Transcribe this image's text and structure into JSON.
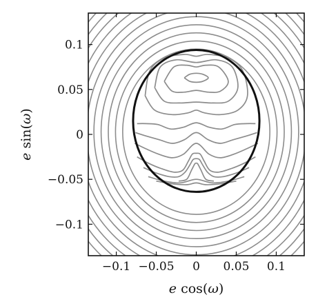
{
  "chart_data": {
    "type": "line",
    "title": "",
    "xlabel": {
      "var": "e",
      "fn": "cos(",
      "sym": "ω",
      "close": ")"
    },
    "ylabel": {
      "var": "e",
      "fn": "sin(",
      "sym": "ω",
      "close": ")"
    },
    "xlim": [
      -0.135,
      0.135
    ],
    "ylim": [
      -0.135,
      0.135
    ],
    "x_ticks": [
      {
        "value": -0.1,
        "label": "−0.1"
      },
      {
        "value": -0.05,
        "label": "−0.05"
      },
      {
        "value": 0,
        "label": "0"
      },
      {
        "value": 0.05,
        "label": "0.05"
      },
      {
        "value": 0.1,
        "label": "0.1"
      }
    ],
    "y_ticks": [
      {
        "value": 0.1,
        "label": "0.1"
      },
      {
        "value": 0.05,
        "label": "0.05"
      },
      {
        "value": 0,
        "label": "0"
      },
      {
        "value": -0.05,
        "label": "−0.05"
      },
      {
        "value": -0.1,
        "label": "−0.1"
      }
    ],
    "grid": false,
    "legend": "none",
    "colors": {
      "contour": "#8c8c8c",
      "separatrix": "#111111",
      "frame": "#111111"
    },
    "separatrix": {
      "center": [
        0,
        0.015
      ],
      "radius": 0.079
    },
    "outer_circles": {
      "center": [
        0,
        0.003
      ],
      "radii": [
        0.092,
        0.101,
        0.11,
        0.119,
        0.128,
        0.137,
        0.146,
        0.155,
        0.164,
        0.173,
        0.182
      ]
    },
    "inner_contours": [
      {
        "name": "island-top-1",
        "points": [
          [
            -0.015,
            0.063
          ],
          [
            -0.008,
            0.067
          ],
          [
            0,
            0.068
          ],
          [
            0.008,
            0.067
          ],
          [
            0.015,
            0.063
          ],
          [
            0.008,
            0.059
          ],
          [
            0,
            0.058
          ],
          [
            -0.008,
            0.059
          ],
          [
            -0.015,
            0.063
          ]
        ]
      },
      {
        "name": "island-top-2",
        "points": [
          [
            -0.04,
            0.059
          ],
          [
            -0.028,
            0.075
          ],
          [
            -0.012,
            0.077
          ],
          [
            0,
            0.075
          ],
          [
            0.012,
            0.077
          ],
          [
            0.028,
            0.075
          ],
          [
            0.04,
            0.059
          ],
          [
            0.03,
            0.048
          ],
          [
            0.015,
            0.047
          ],
          [
            0,
            0.049
          ],
          [
            -0.015,
            0.047
          ],
          [
            -0.03,
            0.048
          ],
          [
            -0.04,
            0.059
          ]
        ]
      },
      {
        "name": "island-top-3",
        "points": [
          [
            -0.052,
            0.052
          ],
          [
            -0.045,
            0.075
          ],
          [
            -0.025,
            0.083
          ],
          [
            0,
            0.08
          ],
          [
            0.025,
            0.083
          ],
          [
            0.045,
            0.075
          ],
          [
            0.052,
            0.052
          ],
          [
            0.04,
            0.037
          ],
          [
            0.02,
            0.035
          ],
          [
            0,
            0.036
          ],
          [
            -0.02,
            0.035
          ],
          [
            -0.04,
            0.037
          ],
          [
            -0.052,
            0.052
          ]
        ]
      },
      {
        "name": "inner-band-1",
        "points": [
          [
            -0.064,
            0.043
          ],
          [
            -0.058,
            0.071
          ],
          [
            -0.04,
            0.085
          ],
          [
            -0.015,
            0.089
          ],
          [
            0,
            0.087
          ],
          [
            0.015,
            0.089
          ],
          [
            0.04,
            0.085
          ],
          [
            0.058,
            0.071
          ],
          [
            0.064,
            0.043
          ],
          [
            0.052,
            0.027
          ],
          [
            0.03,
            0.022
          ],
          [
            0.01,
            0.024
          ],
          [
            0,
            0.027
          ],
          [
            -0.01,
            0.024
          ],
          [
            -0.03,
            0.022
          ],
          [
            -0.052,
            0.027
          ],
          [
            -0.064,
            0.043
          ]
        ]
      },
      {
        "name": "wave-1",
        "points": [
          [
            -0.074,
            0.012
          ],
          [
            -0.063,
            0.012
          ],
          [
            -0.048,
            0.011
          ],
          [
            -0.032,
            0.006
          ],
          [
            -0.016,
            0.008
          ],
          [
            0,
            0.013
          ],
          [
            0.016,
            0.008
          ],
          [
            0.032,
            0.006
          ],
          [
            0.048,
            0.011
          ],
          [
            0.063,
            0.012
          ],
          [
            0.074,
            0.012
          ]
        ]
      },
      {
        "name": "wave-2",
        "points": [
          [
            -0.076,
            0.002
          ],
          [
            -0.062,
            -0.002
          ],
          [
            -0.046,
            -0.006
          ],
          [
            -0.03,
            -0.01
          ],
          [
            -0.015,
            -0.006
          ],
          [
            0,
            0.002
          ],
          [
            0.015,
            -0.006
          ],
          [
            0.03,
            -0.01
          ],
          [
            0.046,
            -0.006
          ],
          [
            0.062,
            -0.002
          ],
          [
            0.076,
            0.002
          ]
        ]
      },
      {
        "name": "wave-3",
        "points": [
          [
            -0.077,
            -0.01
          ],
          [
            -0.063,
            -0.016
          ],
          [
            -0.047,
            -0.022
          ],
          [
            -0.03,
            -0.026
          ],
          [
            -0.016,
            -0.022
          ],
          [
            0,
            -0.01
          ],
          [
            0.016,
            -0.022
          ],
          [
            0.03,
            -0.026
          ],
          [
            0.047,
            -0.022
          ],
          [
            0.063,
            -0.016
          ],
          [
            0.077,
            -0.01
          ]
        ]
      },
      {
        "name": "wave-4",
        "points": [
          [
            -0.074,
            -0.025
          ],
          [
            -0.06,
            -0.032
          ],
          [
            -0.044,
            -0.038
          ],
          [
            -0.028,
            -0.042
          ],
          [
            -0.017,
            -0.04
          ],
          [
            -0.01,
            -0.03
          ],
          [
            -0.005,
            -0.022
          ],
          [
            0,
            -0.021
          ],
          [
            0.005,
            -0.022
          ],
          [
            0.01,
            -0.03
          ],
          [
            0.017,
            -0.04
          ],
          [
            0.028,
            -0.042
          ],
          [
            0.044,
            -0.038
          ],
          [
            0.06,
            -0.032
          ],
          [
            0.074,
            -0.025
          ]
        ]
      },
      {
        "name": "wave-5",
        "points": [
          [
            -0.066,
            -0.037
          ],
          [
            -0.05,
            -0.043
          ],
          [
            -0.034,
            -0.047
          ],
          [
            -0.022,
            -0.047
          ],
          [
            -0.014,
            -0.042
          ],
          [
            -0.008,
            -0.034
          ],
          [
            -0.004,
            -0.028
          ],
          [
            0,
            -0.027
          ],
          [
            0.004,
            -0.028
          ],
          [
            0.008,
            -0.034
          ],
          [
            0.014,
            -0.042
          ],
          [
            0.022,
            -0.047
          ],
          [
            0.034,
            -0.047
          ],
          [
            0.05,
            -0.043
          ],
          [
            0.066,
            -0.037
          ]
        ]
      },
      {
        "name": "lobe-bottom",
        "points": [
          [
            -0.022,
            -0.052
          ],
          [
            -0.012,
            -0.05
          ],
          [
            -0.006,
            -0.04
          ],
          [
            -0.002,
            -0.033
          ],
          [
            0,
            -0.032
          ],
          [
            0.002,
            -0.033
          ],
          [
            0.006,
            -0.04
          ],
          [
            0.012,
            -0.05
          ],
          [
            0.022,
            -0.052
          ]
        ]
      },
      {
        "name": "base-1",
        "points": [
          [
            -0.06,
            -0.047
          ],
          [
            -0.04,
            -0.052
          ],
          [
            -0.02,
            -0.054
          ],
          [
            0,
            -0.05
          ],
          [
            0.02,
            -0.054
          ],
          [
            0.04,
            -0.052
          ],
          [
            0.06,
            -0.047
          ]
        ]
      },
      {
        "name": "base-2",
        "points": [
          [
            -0.05,
            -0.052
          ],
          [
            -0.03,
            -0.055
          ],
          [
            -0.012,
            -0.056
          ],
          [
            0,
            -0.054
          ],
          [
            0.012,
            -0.056
          ],
          [
            0.03,
            -0.055
          ],
          [
            0.05,
            -0.052
          ]
        ]
      }
    ]
  }
}
